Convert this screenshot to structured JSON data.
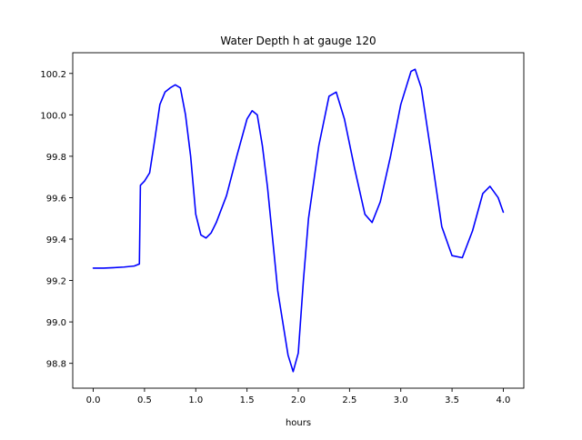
{
  "chart_data": {
    "type": "line",
    "title": "Water Depth h at gauge 120",
    "xlabel": "hours",
    "ylabel": "",
    "xlim": [
      -0.2,
      4.2
    ],
    "ylim": [
      98.68,
      100.3
    ],
    "xticks": [
      "0.0",
      "0.5",
      "1.0",
      "1.5",
      "2.0",
      "2.5",
      "3.0",
      "3.5",
      "4.0"
    ],
    "yticks": [
      "98.8",
      "99.0",
      "99.2",
      "99.4",
      "99.6",
      "99.8",
      "100.0",
      "100.2"
    ],
    "grid": false,
    "series": [
      {
        "color": "#0000ff",
        "x": [
          0.0,
          0.1,
          0.2,
          0.3,
          0.4,
          0.45,
          0.46,
          0.5,
          0.55,
          0.6,
          0.65,
          0.7,
          0.75,
          0.8,
          0.85,
          0.9,
          0.95,
          1.0,
          1.05,
          1.1,
          1.15,
          1.2,
          1.3,
          1.4,
          1.5,
          1.55,
          1.6,
          1.65,
          1.7,
          1.8,
          1.9,
          1.95,
          2.0,
          2.05,
          2.1,
          2.2,
          2.3,
          2.37,
          2.45,
          2.55,
          2.65,
          2.72,
          2.8,
          2.9,
          3.0,
          3.1,
          3.14,
          3.2,
          3.3,
          3.4,
          3.5,
          3.6,
          3.7,
          3.8,
          3.87,
          3.95,
          4.0
        ],
        "y": [
          99.26,
          99.26,
          99.262,
          99.265,
          99.27,
          99.28,
          99.66,
          99.68,
          99.72,
          99.88,
          100.05,
          100.11,
          100.13,
          100.145,
          100.13,
          100.0,
          99.8,
          99.52,
          99.42,
          99.405,
          99.43,
          99.48,
          99.61,
          99.8,
          99.98,
          100.02,
          100.0,
          99.85,
          99.65,
          99.15,
          98.84,
          98.76,
          98.85,
          99.2,
          99.5,
          99.85,
          100.09,
          100.11,
          99.98,
          99.74,
          99.52,
          99.48,
          99.58,
          99.8,
          100.05,
          100.21,
          100.22,
          100.13,
          99.8,
          99.46,
          99.32,
          99.31,
          99.44,
          99.62,
          99.655,
          99.6,
          99.53
        ]
      }
    ]
  }
}
